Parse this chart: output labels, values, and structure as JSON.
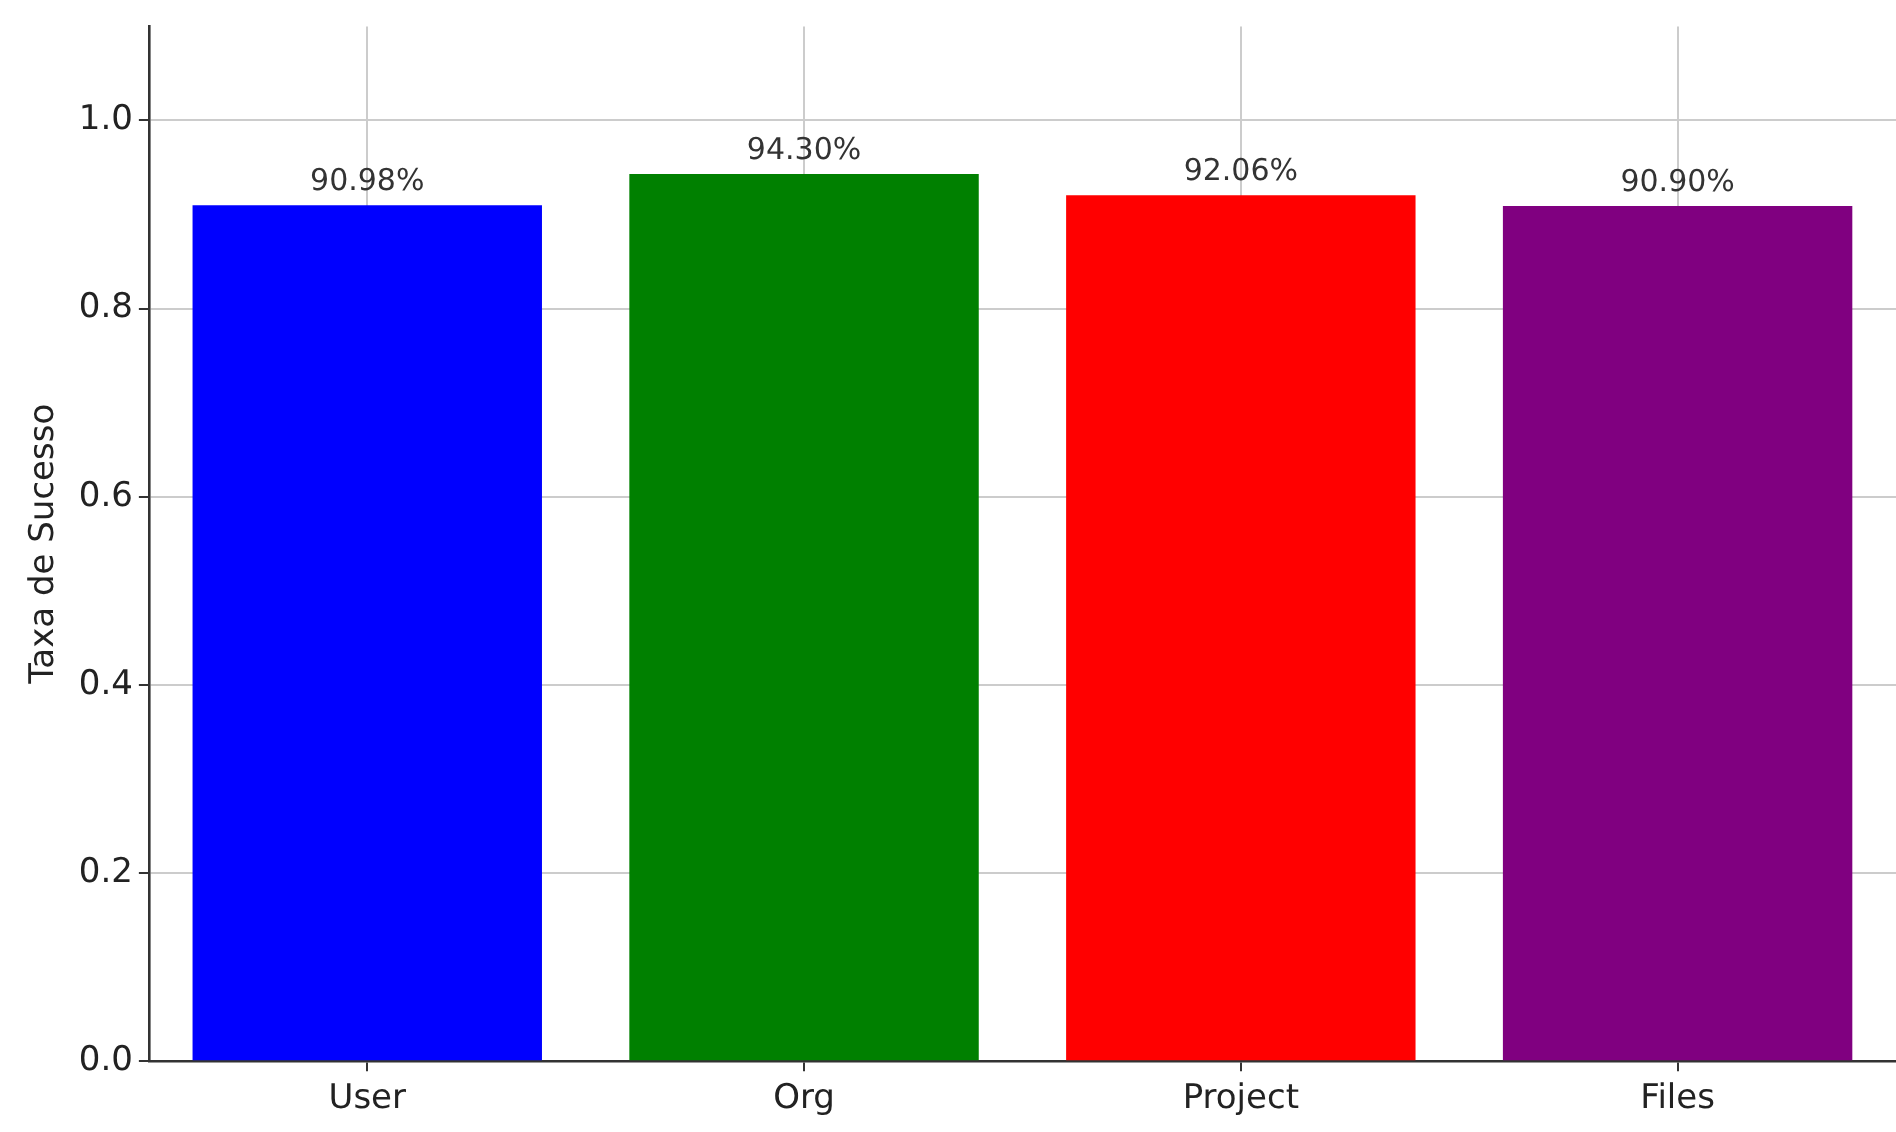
{
  "chart_data": {
    "type": "bar",
    "ylabel": "Taxa de Sucesso",
    "categories": [
      "User",
      "Org",
      "Project",
      "Files"
    ],
    "values": [
      0.9098,
      0.943,
      0.9206,
      0.909
    ],
    "colors": [
      "#0000ff",
      "#008000",
      "#ff0000",
      "#800080"
    ],
    "value_labels": [
      "90.98%",
      "94.30%",
      "92.06%",
      "90.90%"
    ],
    "ylim": [
      0,
      1.1
    ],
    "yticks": [
      {
        "value": 0,
        "label": "0.0"
      },
      {
        "value": 0.2,
        "label": "0.2"
      },
      {
        "value": 0.4,
        "label": "0.4"
      },
      {
        "value": 0.6,
        "label": "0.6"
      },
      {
        "value": 0.8,
        "label": "0.8"
      },
      {
        "value": 1,
        "label": "1.0"
      }
    ],
    "grid": true,
    "legend": false
  }
}
